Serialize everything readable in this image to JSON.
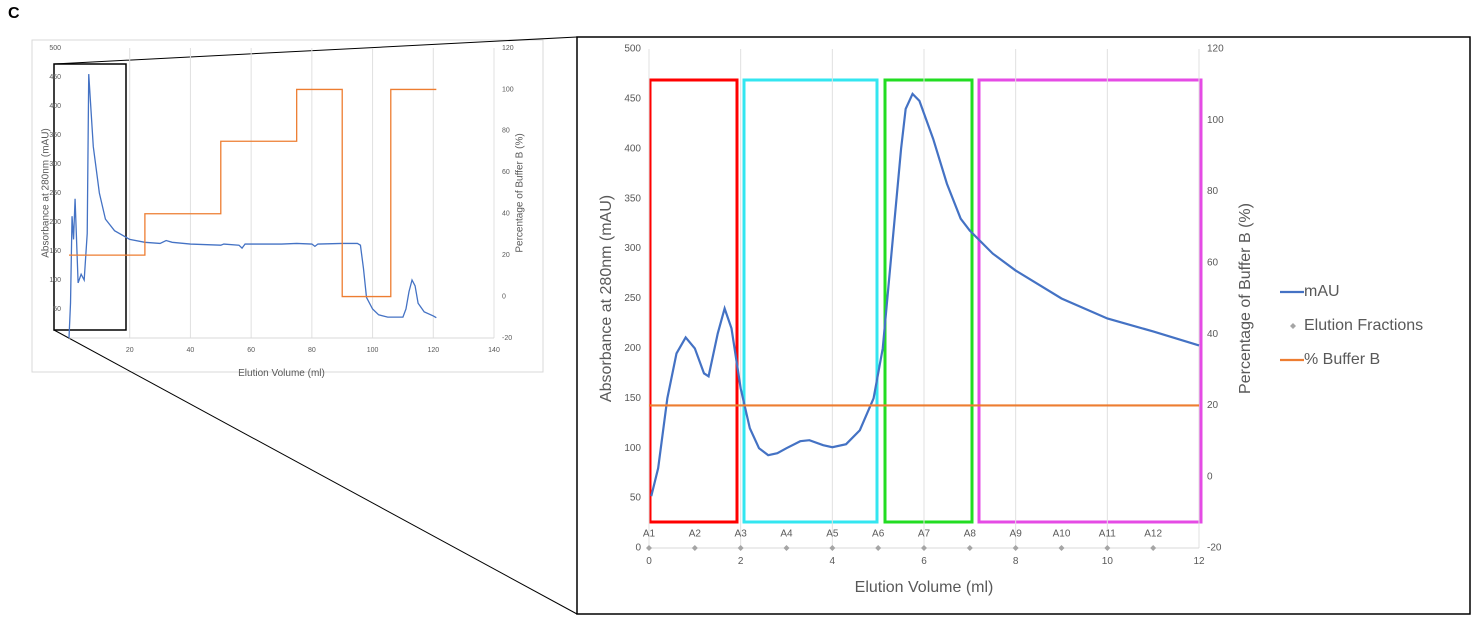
{
  "panel_label": "C",
  "chart_data": [
    {
      "type": "line",
      "xlabel": "Elution Volume (ml)",
      "ylabel": "Absorbance at 280nm (mAU)",
      "y2label": "Percentage of Buffer B (%)",
      "xlim": [
        0,
        140
      ],
      "xticks": [
        20,
        40,
        60,
        80,
        100,
        120,
        140
      ],
      "ylim": [
        0,
        500
      ],
      "yticks": [
        50,
        100,
        150,
        200,
        250,
        300,
        350,
        400,
        450,
        500
      ],
      "y2lim": [
        -20,
        120
      ],
      "y2ticks": [
        -20,
        0,
        20,
        40,
        60,
        80,
        100,
        120
      ],
      "grid": "x",
      "series": [
        {
          "name": "mAU",
          "color": "#4472c4",
          "x": [
            0,
            0.5,
            1,
            1.5,
            2,
            3,
            4,
            5,
            6,
            6.5,
            8,
            10,
            12,
            15,
            20,
            25,
            30,
            32,
            34,
            40,
            50,
            51,
            56,
            57,
            58,
            70,
            75,
            80,
            81,
            82,
            90,
            95,
            96,
            97,
            98,
            100,
            102,
            105,
            110,
            111,
            112,
            113,
            114,
            115,
            117,
            120,
            121
          ],
          "values": [
            0,
            60,
            210,
            170,
            240,
            95,
            110,
            100,
            180,
            455,
            330,
            250,
            205,
            185,
            170,
            165,
            163,
            168,
            165,
            162,
            160,
            162,
            160,
            155,
            162,
            162,
            163,
            162,
            158,
            162,
            163,
            163,
            160,
            120,
            70,
            50,
            40,
            36,
            36,
            50,
            80,
            100,
            90,
            60,
            45,
            38,
            35
          ]
        },
        {
          "name": "% Buffer B",
          "color": "#ed7d31",
          "axis": "y2",
          "x": [
            0,
            25,
            25,
            50,
            50,
            75,
            75,
            90,
            90,
            106,
            106,
            121
          ],
          "values": [
            20,
            20,
            40,
            40,
            75,
            75,
            100,
            100,
            0,
            0,
            100,
            100
          ]
        }
      ]
    },
    {
      "type": "line",
      "xlabel": "Elution Volume (ml)",
      "ylabel": "Absorbance at 280nm (mAU)",
      "y2label": "Percentage of Buffer B (%)",
      "xlim": [
        0,
        12
      ],
      "xticks": [
        0,
        2,
        4,
        6,
        8,
        10,
        12
      ],
      "ylim": [
        0,
        500
      ],
      "yticks": [
        0,
        50,
        100,
        150,
        200,
        250,
        300,
        350,
        400,
        450,
        500
      ],
      "y2lim": [
        -20,
        120
      ],
      "y2ticks": [
        -20,
        0,
        20,
        40,
        60,
        80,
        100,
        120
      ],
      "grid": "x",
      "legend": "right",
      "series": [
        {
          "name": "mAU",
          "color": "#4472c4",
          "x": [
            0.05,
            0.2,
            0.4,
            0.6,
            0.8,
            1.0,
            1.2,
            1.3,
            1.5,
            1.65,
            1.8,
            2.0,
            2.2,
            2.4,
            2.6,
            2.8,
            3.0,
            3.3,
            3.5,
            3.8,
            4.0,
            4.3,
            4.6,
            4.9,
            5.1,
            5.3,
            5.5,
            5.6,
            5.75,
            5.9,
            6.2,
            6.5,
            6.8,
            7.0,
            7.5,
            8.0,
            9.0,
            10.0,
            11.0,
            12.0
          ],
          "values": [
            52,
            80,
            150,
            195,
            211,
            200,
            175,
            172,
            215,
            240,
            220,
            160,
            120,
            100,
            93,
            95,
            100,
            107,
            108,
            103,
            101,
            104,
            118,
            150,
            200,
            300,
            400,
            440,
            455,
            448,
            410,
            365,
            330,
            318,
            295,
            278,
            250,
            230,
            217,
            203
          ]
        },
        {
          "name": "Elution Fractions",
          "type": "scatter",
          "color": "#a5a5a5",
          "x": [
            0,
            1,
            2,
            3,
            4,
            5,
            6,
            7,
            8,
            9,
            10,
            11
          ],
          "values": [
            0,
            0,
            0,
            0,
            0,
            0,
            0,
            0,
            0,
            0,
            0,
            0
          ],
          "labels": [
            "A1",
            "A2",
            "A3",
            "A4",
            "A5",
            "A6",
            "A7",
            "A8",
            "A9",
            "A10",
            "A11",
            "A12"
          ]
        },
        {
          "name": "% Buffer B",
          "color": "#ed7d31",
          "axis": "y2",
          "x": [
            0,
            12
          ],
          "values": [
            20,
            20
          ]
        }
      ]
    }
  ]
}
